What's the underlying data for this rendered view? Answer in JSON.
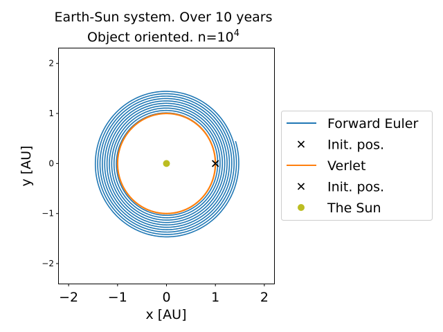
{
  "chart_data": {
    "type": "line",
    "title_line1": "Earth-Sun system. Over 10 years",
    "title_line2_base": "Object oriented. n=10",
    "title_line2_exp": "4",
    "xlabel": "x [AU]",
    "ylabel": "y [AU]",
    "xlim": [
      -2.2,
      2.2
    ],
    "ylim": [
      -2.4,
      2.3
    ],
    "xticks": [
      -2,
      -1,
      0,
      1,
      2
    ],
    "yticks": [
      -2,
      -1,
      0,
      1,
      2
    ],
    "xtick_labels": [
      "−2",
      "−1",
      "0",
      "1",
      "2"
    ],
    "ytick_labels": [
      "−2",
      "−1",
      "0",
      "1",
      "2"
    ],
    "grid": false,
    "legend_position": "outside-right",
    "series": [
      {
        "name": "Forward Euler",
        "kind": "spiral",
        "color": "#1f77b4",
        "start_point": [
          1.0,
          0.0
        ],
        "end_point": [
          1.42,
          0.45
        ],
        "radius_range": [
          1.0,
          1.48
        ],
        "revolutions": 10
      },
      {
        "name": "Init. pos.",
        "kind": "marker",
        "marker": "x",
        "color": "#000000",
        "point": [
          1.0,
          0.0
        ]
      },
      {
        "name": "Verlet",
        "kind": "circle",
        "color": "#ff7f0e",
        "center": [
          0.0,
          0.0
        ],
        "radius": 1.0
      },
      {
        "name": "Init. pos.",
        "kind": "marker",
        "marker": "x",
        "color": "#000000",
        "point": [
          1.0,
          0.0
        ]
      },
      {
        "name": "The Sun",
        "kind": "marker",
        "marker": "dot",
        "color": "#bcbd22",
        "point": [
          0.0,
          0.0
        ]
      }
    ]
  }
}
